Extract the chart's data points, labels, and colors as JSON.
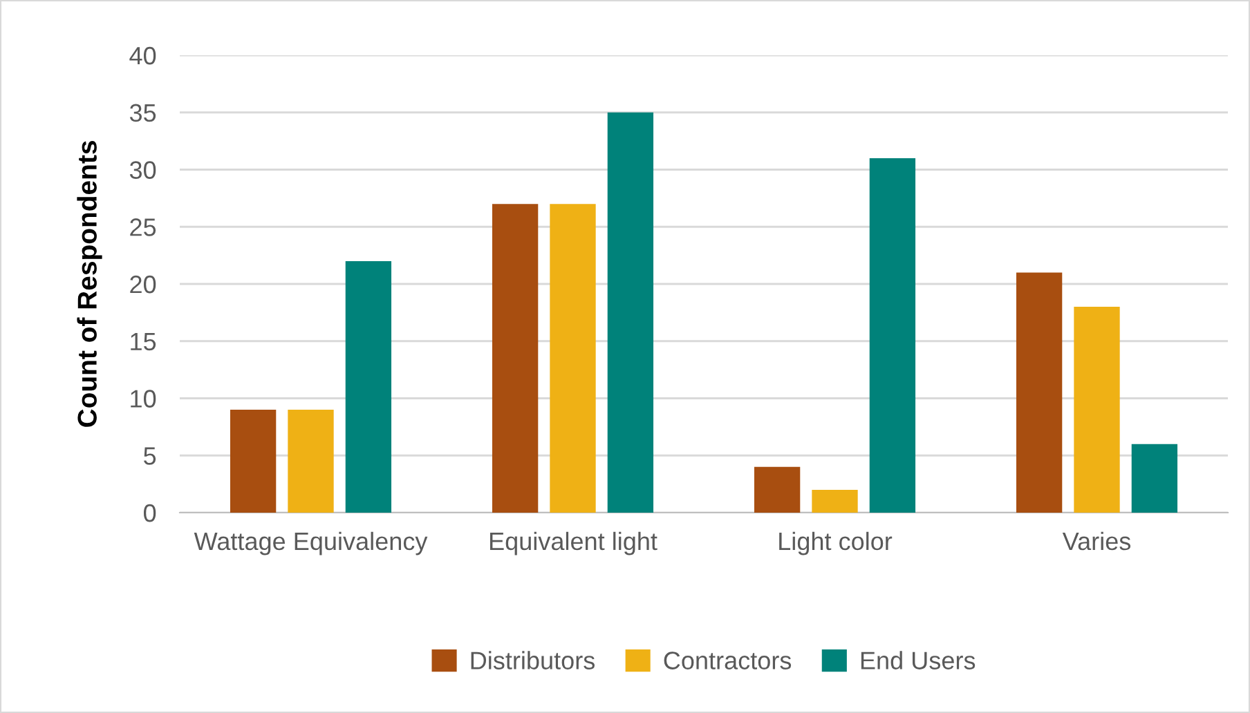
{
  "chart_data": {
    "type": "bar",
    "ylabel": "Count of Respondents",
    "categories": [
      "Wattage Equivalency",
      "Equivalent light",
      "Light color",
      "Varies"
    ],
    "series": [
      {
        "name": "Distributors",
        "color": "#a84e10",
        "values": [
          9,
          27,
          4,
          21
        ]
      },
      {
        "name": "Contractors",
        "color": "#efb115",
        "values": [
          9,
          27,
          2,
          18
        ]
      },
      {
        "name": "End Users",
        "color": "#00827a",
        "values": [
          22,
          35,
          31,
          6
        ]
      }
    ],
    "ylim": [
      0,
      40
    ],
    "yticks": [
      0,
      5,
      10,
      15,
      20,
      25,
      30,
      35,
      40
    ],
    "grid": "y",
    "legend": "bottom"
  }
}
